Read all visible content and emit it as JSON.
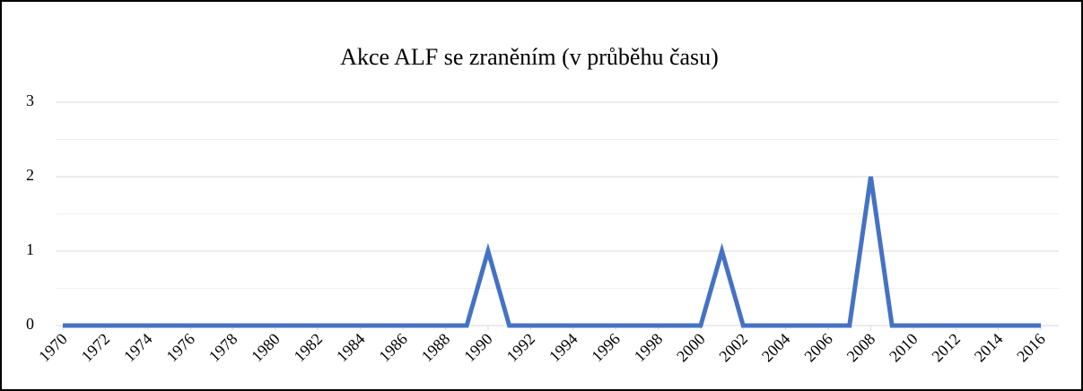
{
  "chart_data": {
    "type": "line",
    "title": "Akce ALF se zraněním (v průběhu času)",
    "x": [
      1970,
      1971,
      1972,
      1973,
      1974,
      1975,
      1976,
      1977,
      1978,
      1979,
      1980,
      1981,
      1982,
      1983,
      1984,
      1985,
      1986,
      1987,
      1988,
      1989,
      1990,
      1991,
      1992,
      1993,
      1994,
      1995,
      1996,
      1997,
      1998,
      1999,
      2000,
      2001,
      2002,
      2003,
      2004,
      2005,
      2006,
      2007,
      2008,
      2009,
      2010,
      2011,
      2012,
      2013,
      2014,
      2015,
      2016
    ],
    "series": [
      {
        "name": "Akce",
        "color": "#4472c4",
        "values": [
          0,
          0,
          0,
          0,
          0,
          0,
          0,
          0,
          0,
          0,
          0,
          0,
          0,
          0,
          0,
          0,
          0,
          0,
          0,
          0,
          1,
          0,
          0,
          0,
          0,
          0,
          0,
          0,
          0,
          0,
          0,
          1,
          0,
          0,
          0,
          0,
          0,
          0,
          2,
          0,
          0,
          0,
          0,
          0,
          0,
          0,
          0
        ]
      }
    ],
    "xlim": [
      1970,
      2016
    ],
    "xticks": [
      1970,
      1972,
      1974,
      1976,
      1978,
      1980,
      1982,
      1984,
      1986,
      1988,
      1990,
      1992,
      1994,
      1996,
      1998,
      2000,
      2002,
      2004,
      2006,
      2008,
      2010,
      2012,
      2014,
      2016
    ],
    "ylim": [
      0,
      3
    ],
    "yticks": [
      0,
      1,
      2,
      3
    ],
    "minor_yticks": [
      0.5,
      1.5,
      2.5
    ],
    "grid": true
  }
}
